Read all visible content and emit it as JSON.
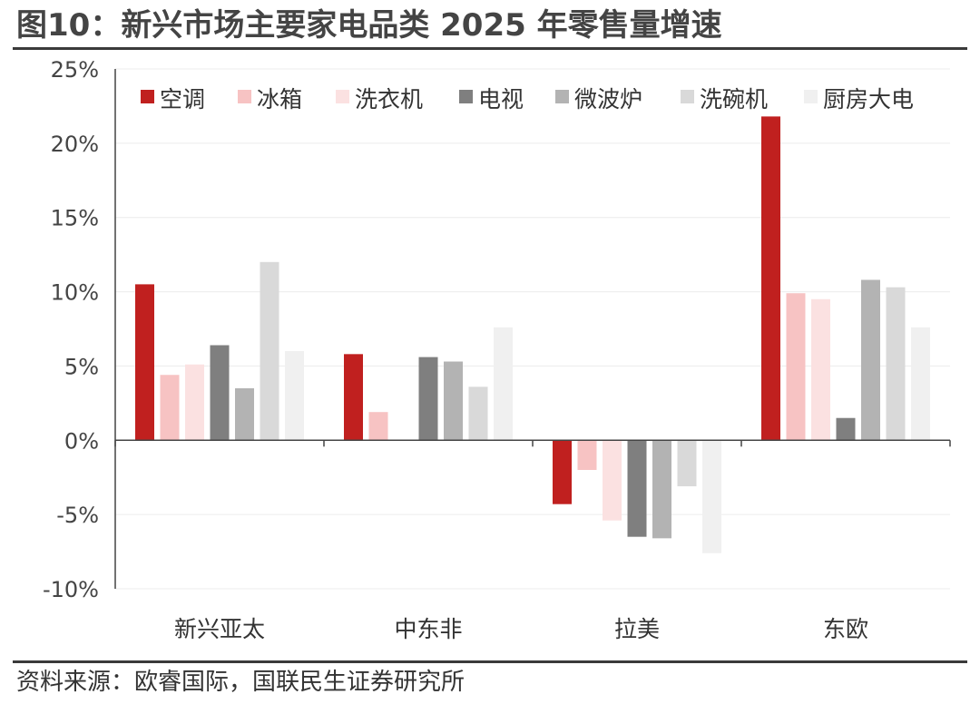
{
  "figure": {
    "title": "图10：新兴市场主要家电品类 2025 年零售量增速",
    "source": "资料来源：欧睿国际，国联民生证券研究所"
  },
  "chart_data": {
    "type": "bar",
    "categories": [
      "新兴亚太",
      "中东非",
      "拉美",
      "东欧"
    ],
    "series": [
      {
        "name": "空调",
        "color": "#c0201f",
        "values": [
          10.5,
          5.8,
          -4.3,
          21.8
        ]
      },
      {
        "name": "冰箱",
        "color": "#f7c3c3",
        "values": [
          4.4,
          1.9,
          -2.0,
          9.9
        ]
      },
      {
        "name": "洗衣机",
        "color": "#fbe1e1",
        "values": [
          5.1,
          null,
          -5.4,
          9.5
        ]
      },
      {
        "name": "电视",
        "color": "#7f7f7f",
        "values": [
          6.4,
          5.6,
          -6.5,
          1.5
        ]
      },
      {
        "name": "微波炉",
        "color": "#b3b3b3",
        "values": [
          3.5,
          5.3,
          -6.6,
          10.8
        ]
      },
      {
        "name": "洗碗机",
        "color": "#d9d9d9",
        "values": [
          12.0,
          3.6,
          -3.1,
          10.3
        ]
      },
      {
        "name": "厨房大电",
        "color": "#f0f0f0",
        "values": [
          6.0,
          7.6,
          -7.6,
          7.6
        ]
      }
    ],
    "ylim": [
      -10,
      25
    ],
    "yticks": [
      25,
      20,
      15,
      10,
      5,
      0,
      -5,
      -10
    ],
    "ytick_labels": [
      "25%",
      "20%",
      "15%",
      "10%",
      "5%",
      "0%",
      "-5%",
      "-10%"
    ],
    "grid": true,
    "legend_position": "top"
  }
}
